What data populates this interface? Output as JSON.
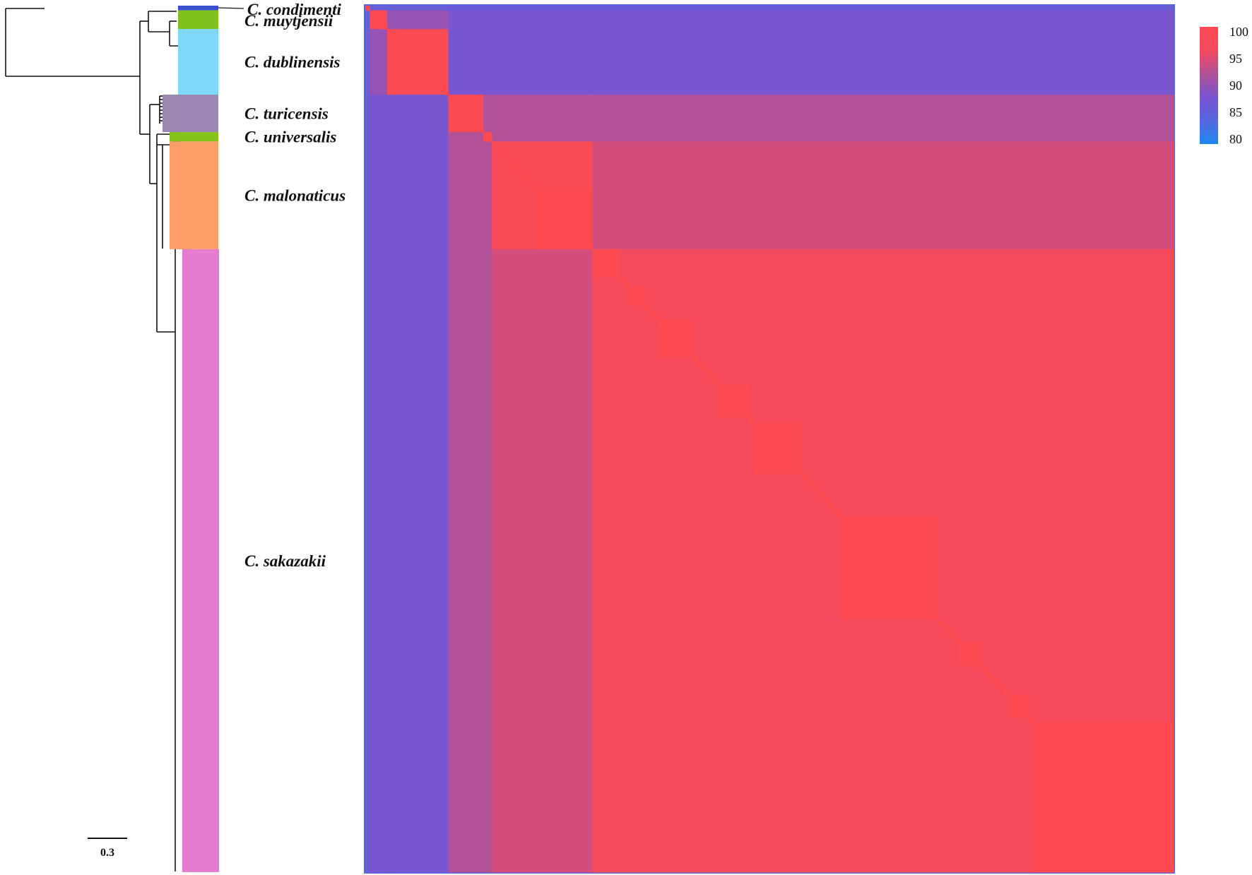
{
  "chart_data": {
    "type": "heatmap",
    "title": "",
    "description_of_axes": "",
    "clades": [
      {
        "name": "C. condimenti",
        "n": 1,
        "color": "#3a4fd0"
      },
      {
        "name": "C. muytjensii",
        "n": 4,
        "color": "#7fc31c"
      },
      {
        "name": "C. dublinensis",
        "n": 14,
        "color": "#7fd8f7"
      },
      {
        "name": "C. turicensis",
        "n": 8,
        "color": "#9a86b0"
      },
      {
        "name": "C. universalis",
        "n": 2,
        "color": "#88c31c"
      },
      {
        "name": "C. malonaticus",
        "n": 23,
        "color": "#fd9e6a"
      },
      {
        "name": "C. sakazakii",
        "n": 133,
        "color": "#e47dd0"
      }
    ],
    "identity_matrix_between_clades": [
      [
        100,
        86,
        86,
        86,
        86,
        86,
        86
      ],
      [
        86,
        100,
        90,
        88,
        88,
        88,
        88
      ],
      [
        86,
        90,
        99,
        88,
        88,
        88,
        88
      ],
      [
        86,
        88,
        88,
        99,
        92,
        92,
        92
      ],
      [
        86,
        88,
        88,
        92,
        99,
        92,
        92
      ],
      [
        86,
        88,
        88,
        92,
        92,
        98,
        94
      ],
      [
        86,
        88,
        88,
        92,
        92,
        94,
        97
      ]
    ],
    "high_identity_subclusters": [
      {
        "clade": 5,
        "start": 10,
        "size": 13
      },
      {
        "clade": 6,
        "start": 0,
        "size": 6
      },
      {
        "clade": 6,
        "start": 8,
        "size": 4
      },
      {
        "clade": 6,
        "start": 15,
        "size": 8
      },
      {
        "clade": 6,
        "start": 29,
        "size": 7
      },
      {
        "clade": 6,
        "start": 37,
        "size": 11
      },
      {
        "clade": 6,
        "start": 57,
        "size": 22
      },
      {
        "clade": 6,
        "start": 84,
        "size": 5
      },
      {
        "clade": 6,
        "start": 95,
        "size": 5
      },
      {
        "clade": 6,
        "start": 101,
        "size": 32
      }
    ],
    "colorbar": {
      "min": 80,
      "max": 100,
      "ticks": [
        "100",
        "95",
        "90",
        "85",
        "80"
      ],
      "stops": [
        "#1e88f0",
        "#5668e0",
        "#7a55d0",
        "#b25098",
        "#f24a5e",
        "#fd4a50"
      ]
    },
    "scale_bar": {
      "label": "0.3"
    },
    "grid": false,
    "legend": "top-right"
  }
}
